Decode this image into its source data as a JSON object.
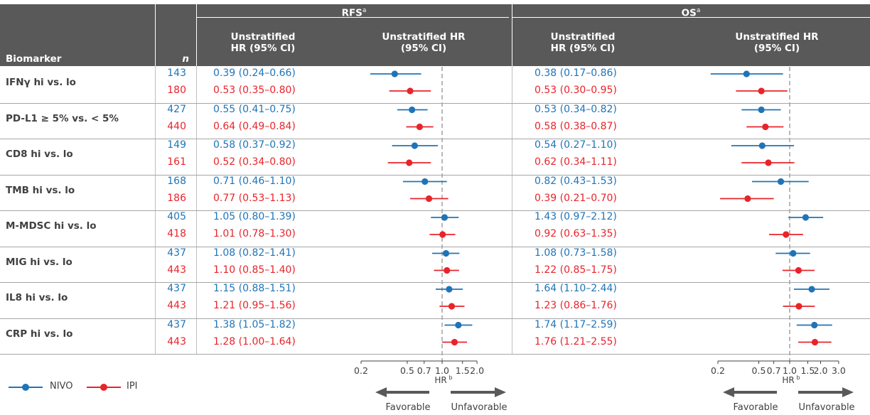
{
  "header": {
    "biomarker": "Biomarker",
    "n": "n",
    "rfs_group": "RFS",
    "rfs_sup": "a",
    "os_group": "OS",
    "os_sup": "a",
    "col_hr_line1": "Unstratified",
    "col_hr_line2": "HR (95% CI)",
    "col_plot_line1": "Unstratified HR",
    "col_plot_line2": "(95% CI)"
  },
  "colors": {
    "nivo": "#1f74b8",
    "ipi": "#e8242b",
    "header_bg": "#595959"
  },
  "legend": {
    "nivo": "NIVO",
    "ipi": "IPI"
  },
  "chart_data": [
    {
      "type": "forest",
      "panel": "RFS",
      "x_scale": "log",
      "reference_line": 1.0,
      "xlim": [
        0.2,
        2.0
      ],
      "xticks": [
        "0.2",
        "0.5",
        "0.7",
        "1.0",
        "1.5",
        "2.0"
      ],
      "xlabel": "HR",
      "xlabel_sup": "b",
      "arrow_left": "Favorable",
      "arrow_right": "Unfavorable",
      "rows": [
        {
          "biomarker": "IFNγ hi vs. lo",
          "series": [
            {
              "group": "NIVO",
              "n": "143",
              "label": "0.39 (0.24–0.66)",
              "hr": 0.39,
              "lo": 0.24,
              "hi": 0.66
            },
            {
              "group": "IPI",
              "n": "180",
              "label": "0.53 (0.35–0.80)",
              "hr": 0.53,
              "lo": 0.35,
              "hi": 0.8
            }
          ]
        },
        {
          "biomarker": "PD-L1 ≥ 5% vs. < 5%",
          "series": [
            {
              "group": "NIVO",
              "n": "427",
              "label": "0.55 (0.41–0.75)",
              "hr": 0.55,
              "lo": 0.41,
              "hi": 0.75
            },
            {
              "group": "IPI",
              "n": "440",
              "label": "0.64 (0.49–0.84)",
              "hr": 0.64,
              "lo": 0.49,
              "hi": 0.84
            }
          ]
        },
        {
          "biomarker": "CD8 hi vs. lo",
          "series": [
            {
              "group": "NIVO",
              "n": "149",
              "label": "0.58 (0.37–0.92)",
              "hr": 0.58,
              "lo": 0.37,
              "hi": 0.92
            },
            {
              "group": "IPI",
              "n": "161",
              "label": "0.52 (0.34–0.80)",
              "hr": 0.52,
              "lo": 0.34,
              "hi": 0.8
            }
          ]
        },
        {
          "biomarker": "TMB hi vs. lo",
          "series": [
            {
              "group": "NIVO",
              "n": "168",
              "label": "0.71 (0.46–1.10)",
              "hr": 0.71,
              "lo": 0.46,
              "hi": 1.1
            },
            {
              "group": "IPI",
              "n": "186",
              "label": "0.77 (0.53–1.13)",
              "hr": 0.77,
              "lo": 0.53,
              "hi": 1.13
            }
          ]
        },
        {
          "biomarker": "M-MDSC hi vs. lo",
          "series": [
            {
              "group": "NIVO",
              "n": "405",
              "label": "1.05 (0.80–1.39)",
              "hr": 1.05,
              "lo": 0.8,
              "hi": 1.39
            },
            {
              "group": "IPI",
              "n": "418",
              "label": "1.01 (0.78–1.30)",
              "hr": 1.01,
              "lo": 0.78,
              "hi": 1.3
            }
          ]
        },
        {
          "biomarker": "MIG hi vs. lo",
          "series": [
            {
              "group": "NIVO",
              "n": "437",
              "label": "1.08 (0.82–1.41)",
              "hr": 1.08,
              "lo": 0.82,
              "hi": 1.41
            },
            {
              "group": "IPI",
              "n": "443",
              "label": "1.10 (0.85–1.40)",
              "hr": 1.1,
              "lo": 0.85,
              "hi": 1.4
            }
          ]
        },
        {
          "biomarker": "IL8 hi vs. lo",
          "series": [
            {
              "group": "NIVO",
              "n": "437",
              "label": "1.15 (0.88–1.51)",
              "hr": 1.15,
              "lo": 0.88,
              "hi": 1.51
            },
            {
              "group": "IPI",
              "n": "443",
              "label": "1.21 (0.95–1.56)",
              "hr": 1.21,
              "lo": 0.95,
              "hi": 1.56
            }
          ]
        },
        {
          "biomarker": "CRP hi vs. lo",
          "series": [
            {
              "group": "NIVO",
              "n": "437",
              "label": "1.38 (1.05–1.82)",
              "hr": 1.38,
              "lo": 1.05,
              "hi": 1.82
            },
            {
              "group": "IPI",
              "n": "443",
              "label": "1.28 (1.00–1.64)",
              "hr": 1.28,
              "lo": 1.0,
              "hi": 1.64
            }
          ]
        }
      ]
    },
    {
      "type": "forest",
      "panel": "OS",
      "x_scale": "log",
      "reference_line": 1.0,
      "xlim": [
        0.2,
        3.0
      ],
      "xticks": [
        "0.2",
        "0.5",
        "0.7",
        "1.0",
        "1.5",
        "2.0",
        "3.0"
      ],
      "xlabel": "HR",
      "xlabel_sup": "b",
      "arrow_left": "Favorable",
      "arrow_right": "Unfavorable",
      "rows": [
        {
          "biomarker": "IFNγ hi vs. lo",
          "series": [
            {
              "group": "NIVO",
              "label": "0.38 (0.17–0.86)",
              "hr": 0.38,
              "lo": 0.17,
              "hi": 0.86
            },
            {
              "group": "IPI",
              "label": "0.53 (0.30–0.95)",
              "hr": 0.53,
              "lo": 0.3,
              "hi": 0.95
            }
          ]
        },
        {
          "biomarker": "PD-L1 ≥ 5% vs. < 5%",
          "series": [
            {
              "group": "NIVO",
              "label": "0.53 (0.34–0.82)",
              "hr": 0.53,
              "lo": 0.34,
              "hi": 0.82
            },
            {
              "group": "IPI",
              "label": "0.58 (0.38–0.87)",
              "hr": 0.58,
              "lo": 0.38,
              "hi": 0.87
            }
          ]
        },
        {
          "biomarker": "CD8 hi vs. lo",
          "series": [
            {
              "group": "NIVO",
              "label": "0.54 (0.27–1.10)",
              "hr": 0.54,
              "lo": 0.27,
              "hi": 1.1
            },
            {
              "group": "IPI",
              "label": "0.62 (0.34–1.11)",
              "hr": 0.62,
              "lo": 0.34,
              "hi": 1.11
            }
          ]
        },
        {
          "biomarker": "TMB hi vs. lo",
          "series": [
            {
              "group": "NIVO",
              "label": "0.82 (0.43–1.53)",
              "hr": 0.82,
              "lo": 0.43,
              "hi": 1.53
            },
            {
              "group": "IPI",
              "label": "0.39 (0.21–0.70)",
              "hr": 0.39,
              "lo": 0.21,
              "hi": 0.7
            }
          ]
        },
        {
          "biomarker": "M-MDSC hi vs. lo",
          "series": [
            {
              "group": "NIVO",
              "label": "1.43 (0.97–2.12)",
              "hr": 1.43,
              "lo": 0.97,
              "hi": 2.12
            },
            {
              "group": "IPI",
              "label": "0.92 (0.63–1.35)",
              "hr": 0.92,
              "lo": 0.63,
              "hi": 1.35
            }
          ]
        },
        {
          "biomarker": "MIG hi vs. lo",
          "series": [
            {
              "group": "NIVO",
              "label": "1.08 (0.73–1.58)",
              "hr": 1.08,
              "lo": 0.73,
              "hi": 1.58
            },
            {
              "group": "IPI",
              "label": "1.22 (0.85–1.75)",
              "hr": 1.22,
              "lo": 0.85,
              "hi": 1.75
            }
          ]
        },
        {
          "biomarker": "IL8 hi vs. lo",
          "series": [
            {
              "group": "NIVO",
              "label": "1.64 (1.10–2.44)",
              "hr": 1.64,
              "lo": 1.1,
              "hi": 2.44
            },
            {
              "group": "IPI",
              "label": "1.23 (0.86–1.76)",
              "hr": 1.23,
              "lo": 0.86,
              "hi": 1.76
            }
          ]
        },
        {
          "biomarker": "CRP hi vs. lo",
          "series": [
            {
              "group": "NIVO",
              "label": "1.74 (1.17–2.59)",
              "hr": 1.74,
              "lo": 1.17,
              "hi": 2.59
            },
            {
              "group": "IPI",
              "label": "1.76 (1.21–2.55)",
              "hr": 1.76,
              "lo": 1.21,
              "hi": 2.55
            }
          ]
        }
      ]
    }
  ]
}
